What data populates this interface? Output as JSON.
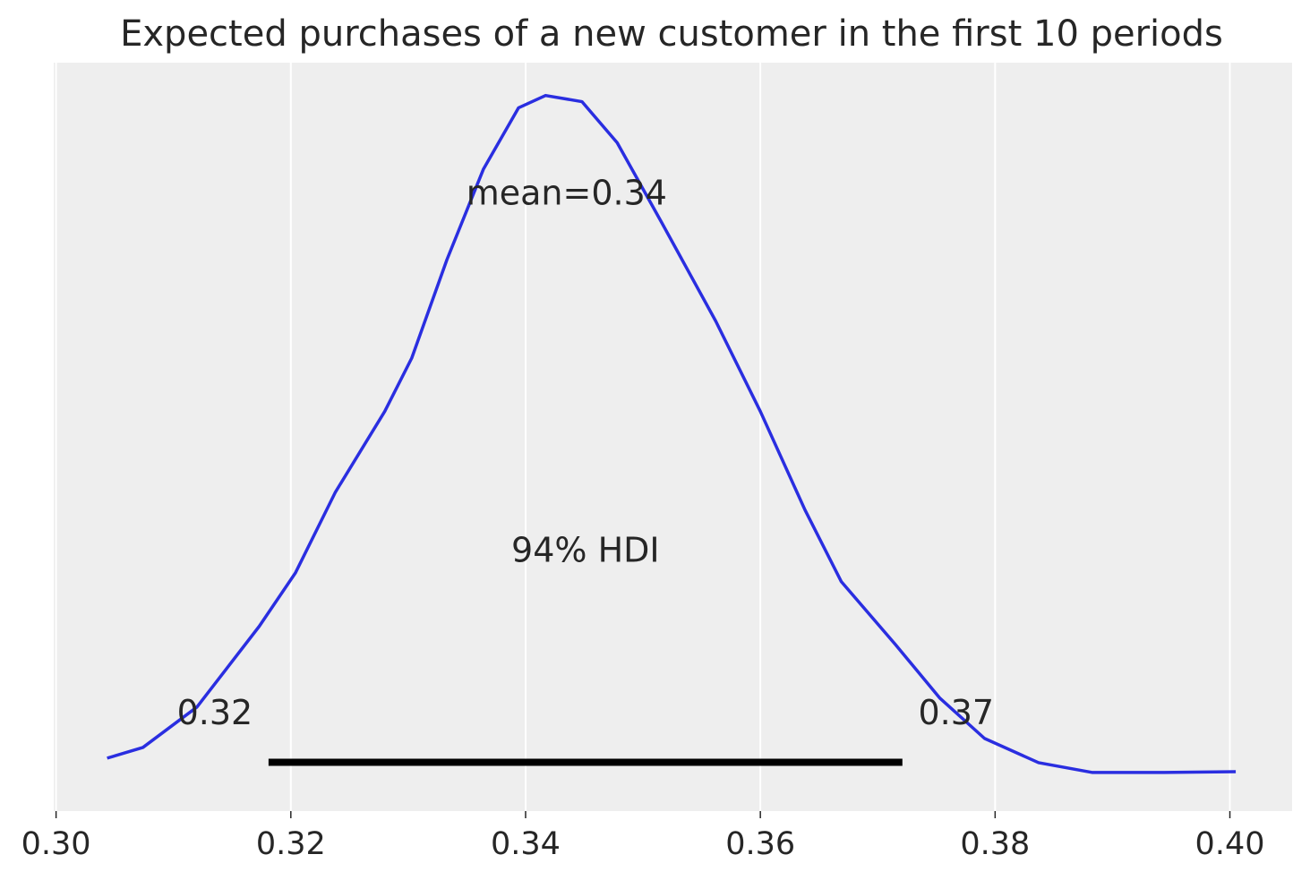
{
  "chart_data": {
    "type": "line",
    "title": "Expected purchases of a new customer in the first 10 periods",
    "x": [
      0.30435,
      0.3074,
      0.312,
      0.3173,
      0.3204,
      0.3238,
      0.328,
      0.3303,
      0.3333,
      0.3364,
      0.3394,
      0.3417,
      0.3448,
      0.3478,
      0.3516,
      0.3562,
      0.36,
      0.3638,
      0.3669,
      0.3715,
      0.3753,
      0.3791,
      0.3837,
      0.3883,
      0.3944,
      0.4005
    ],
    "y": [
      0.7,
      1.22,
      3.19,
      7.12,
      9.74,
      13.67,
      17.6,
      20.2,
      25.0,
      29.4,
      32.4,
      33.0,
      32.7,
      30.7,
      26.8,
      22.0,
      17.6,
      12.8,
      9.3,
      6.24,
      3.62,
      1.66,
      0.48,
      0.0,
      0.0,
      0.04
    ],
    "color": "#2a2ee0",
    "xlim": [
      0.2998,
      0.4053
    ],
    "ylim": [
      -1.88,
      34.6
    ],
    "xticks": [
      {
        "value": 0.3,
        "label": "0.30"
      },
      0.32,
      0.34,
      0.36,
      0.38,
      {
        "value": 0.4,
        "label": "0.40"
      }
    ],
    "grid": true,
    "mean": {
      "value": 0.3435,
      "label": "mean=0.34"
    },
    "hdi": {
      "lower": 0.3181,
      "upper": 0.3721,
      "lower_label": "0.32",
      "upper_label": "0.37",
      "label": "94% HDI",
      "color": "#000000"
    }
  }
}
